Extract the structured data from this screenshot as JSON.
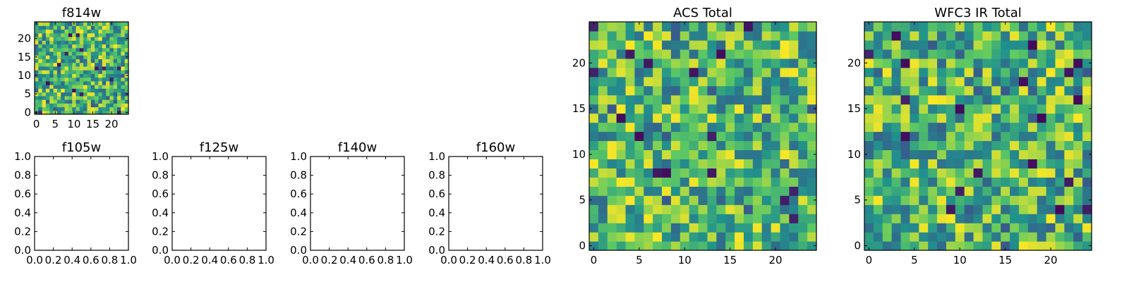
{
  "chart_data": [
    {
      "type": "heatmap",
      "title": "f814w",
      "grid_size": 25,
      "xlim": [
        -0.5,
        24.5
      ],
      "ylim": [
        -0.5,
        24.5
      ],
      "xticks": [
        0,
        5,
        10,
        15,
        20
      ],
      "yticks": [
        0,
        5,
        10,
        15,
        20
      ],
      "colormap": "viridis",
      "seed": 814
    },
    {
      "type": "heatmap",
      "title": "f105w",
      "empty": true,
      "xlim": [
        0,
        1
      ],
      "ylim": [
        0,
        1
      ],
      "xticks": [
        "0.0",
        "0.2",
        "0.4",
        "0.6",
        "0.8",
        "1.0"
      ],
      "yticks": [
        "0.0",
        "0.2",
        "0.4",
        "0.6",
        "0.8",
        "1.0"
      ]
    },
    {
      "type": "heatmap",
      "title": "f125w",
      "empty": true,
      "xlim": [
        0,
        1
      ],
      "ylim": [
        0,
        1
      ],
      "xticks": [
        "0.0",
        "0.2",
        "0.4",
        "0.6",
        "0.8",
        "1.0"
      ],
      "yticks": [
        "0.0",
        "0.2",
        "0.4",
        "0.6",
        "0.8",
        "1.0"
      ]
    },
    {
      "type": "heatmap",
      "title": "f140w",
      "empty": true,
      "xlim": [
        0,
        1
      ],
      "ylim": [
        0,
        1
      ],
      "xticks": [
        "0.0",
        "0.2",
        "0.4",
        "0.6",
        "0.8",
        "1.0"
      ],
      "yticks": [
        "0.0",
        "0.2",
        "0.4",
        "0.6",
        "0.8",
        "1.0"
      ]
    },
    {
      "type": "heatmap",
      "title": "f160w",
      "empty": true,
      "xlim": [
        0,
        1
      ],
      "ylim": [
        0,
        1
      ],
      "xticks": [
        "0.0",
        "0.2",
        "0.4",
        "0.6",
        "0.8",
        "1.0"
      ],
      "yticks": [
        "0.0",
        "0.2",
        "0.4",
        "0.6",
        "0.8",
        "1.0"
      ]
    },
    {
      "type": "heatmap",
      "title": "ACS Total",
      "grid_size": 25,
      "xlim": [
        -0.5,
        24.5
      ],
      "ylim": [
        -0.5,
        24.5
      ],
      "xticks": [
        0,
        5,
        10,
        15,
        20
      ],
      "yticks": [
        0,
        5,
        10,
        15,
        20
      ],
      "colormap": "viridis",
      "seed": 1001
    },
    {
      "type": "heatmap",
      "title": "WFC3 IR Total",
      "grid_size": 25,
      "xlim": [
        -0.5,
        24.5
      ],
      "ylim": [
        -0.5,
        24.5
      ],
      "xticks": [
        0,
        5,
        10,
        15,
        20
      ],
      "yticks": [
        0,
        5,
        10,
        15,
        20
      ],
      "colormap": "viridis",
      "seed": 2002
    }
  ],
  "colors": {
    "viridis_dark": "#440154",
    "viridis_blue": "#31688e",
    "viridis_teal": "#21918c",
    "viridis_green": "#35b779",
    "viridis_lime": "#90d743",
    "viridis_yellow": "#fde725"
  }
}
